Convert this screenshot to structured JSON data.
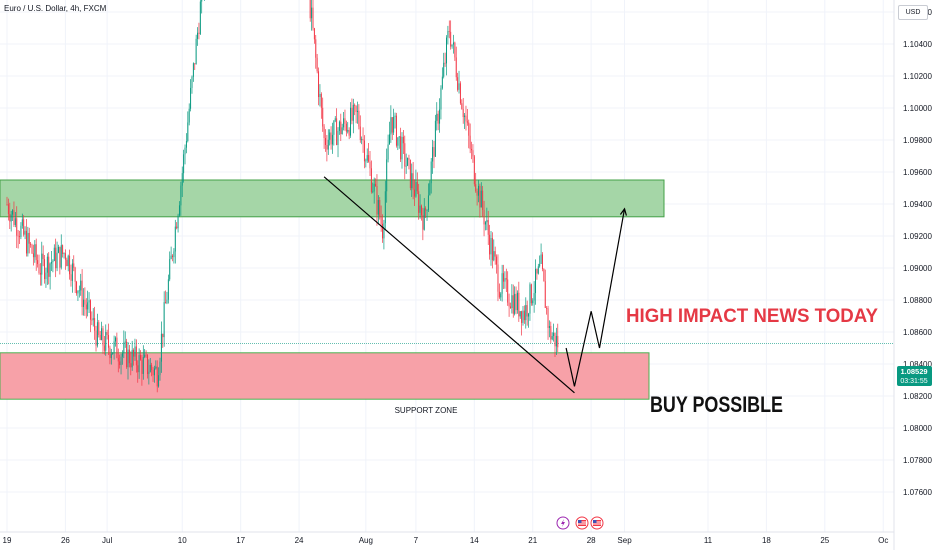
{
  "header": {
    "symbol_title": "Euro / U.S. Dollar, 4h, FXCM",
    "currency": "USD"
  },
  "price_tag": {
    "price": "1.08529",
    "countdown": "03:31:55"
  },
  "annotations": {
    "support_zone": "SUPPORT ZONE",
    "buy_possible": "BUY POSSIBLE",
    "news": "HIGH IMPACT NEWS TODAY"
  },
  "colors": {
    "up": "#089981",
    "down": "#f23645",
    "resistance_zone": "#a5d6a7",
    "support_zone": "#f7a1a8",
    "news_text": "#e53945",
    "price_line": "#089981"
  },
  "icons": [
    "lightning-icon",
    "us-flag-icon",
    "us-flag-icon"
  ],
  "chart_data": {
    "type": "candlestick",
    "y_axis": {
      "ticks": [
        "1.07600",
        "1.07800",
        "1.08000",
        "1.08200",
        "1.08400",
        "1.08600",
        "1.08800",
        "1.09000",
        "1.09200",
        "1.09400",
        "1.09600",
        "1.09800",
        "1.10000",
        "1.10200",
        "1.10400",
        "1.10600"
      ],
      "range": [
        1.075,
        1.1135
      ]
    },
    "x_axis": {
      "ticks": [
        "19",
        "26",
        "Jul",
        "10",
        "17",
        "24",
        "Aug",
        "7",
        "14",
        "21",
        "28",
        "Sep",
        "11",
        "18",
        "25",
        "Oc"
      ]
    },
    "last_price": 1.08529,
    "key_points": [
      {
        "date": "Jun 19",
        "price": 1.094
      },
      {
        "date": "Jun 23",
        "price": 1.09
      },
      {
        "date": "Jun 26",
        "price": 1.091
      },
      {
        "date": "Jun 30",
        "price": 1.0855
      },
      {
        "date": "Jul 7",
        "price": 1.0835
      },
      {
        "date": "Jul 10",
        "price": 1.096
      },
      {
        "date": "Jul 14",
        "price": 1.115
      },
      {
        "date": "Jul 18",
        "price": 1.114
      },
      {
        "date": "Jul 25",
        "price": 1.108
      },
      {
        "date": "Jul 27",
        "price": 1.098
      },
      {
        "date": "Jul 31",
        "price": 1.0995
      },
      {
        "date": "Aug 3",
        "price": 1.0925
      },
      {
        "date": "Aug 4",
        "price": 1.0995
      },
      {
        "date": "Aug 8",
        "price": 1.093
      },
      {
        "date": "Aug 11",
        "price": 1.105
      },
      {
        "date": "Aug 14",
        "price": 1.096
      },
      {
        "date": "Aug 17",
        "price": 1.089
      },
      {
        "date": "Aug 20",
        "price": 1.0872
      },
      {
        "date": "Aug 22",
        "price": 1.09
      },
      {
        "date": "Aug 23",
        "price": 1.086
      },
      {
        "date": "Aug 24",
        "price": 1.0853
      }
    ],
    "zones": [
      {
        "name": "resistance",
        "top": 1.0955,
        "bottom": 1.0932
      },
      {
        "name": "support",
        "label": "SUPPORT ZONE",
        "top": 1.0847,
        "bottom": 1.0818
      }
    ],
    "trendline": [
      {
        "date": "Jul 27",
        "price": 1.0957
      },
      {
        "date": "Aug 26",
        "price": 1.0822
      }
    ],
    "projection": [
      {
        "date": "Aug 25",
        "price": 1.085
      },
      {
        "date": "Aug 26",
        "price": 1.0826
      },
      {
        "date": "Aug 28",
        "price": 1.0873
      },
      {
        "date": "Aug 29",
        "price": 1.085
      },
      {
        "date": "Sep 1",
        "price": 1.0937
      }
    ]
  }
}
